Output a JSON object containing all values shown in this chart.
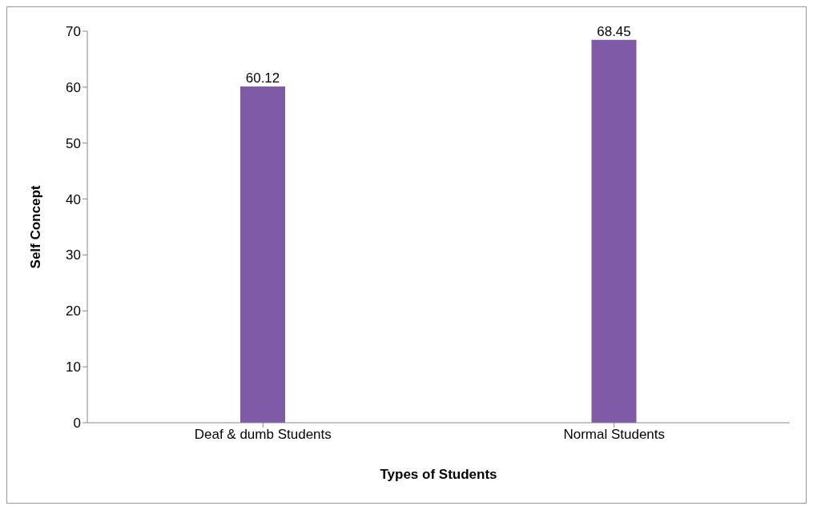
{
  "chart_data": {
    "type": "bar",
    "xlabel": "Types of Students",
    "ylabel": "Self Concept",
    "categories": [
      "Deaf & dumb Students",
      "Normal Students"
    ],
    "values": [
      60.12,
      68.45
    ],
    "color": "#7f5aa6",
    "ylim": [
      0,
      70
    ],
    "yticks": [
      0,
      10,
      20,
      30,
      40,
      50,
      60,
      70
    ],
    "grid": false,
    "legend": false,
    "data_labels": true
  }
}
